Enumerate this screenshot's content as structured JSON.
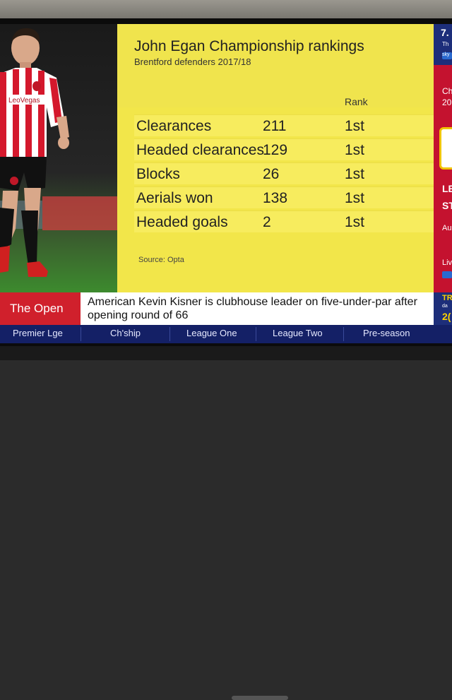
{
  "graphic": {
    "title": "John Egan Championship rankings",
    "subtitle": "Brentford defenders 2017/18",
    "rank_header": "Rank",
    "rows": [
      {
        "label": "Clearances",
        "value": "211",
        "rank": "1st"
      },
      {
        "label": "Headed clearances",
        "value": "129",
        "rank": "1st"
      },
      {
        "label": "Blocks",
        "value": "26",
        "rank": "1st"
      },
      {
        "label": "Aerials won",
        "value": "138",
        "rank": "1st"
      },
      {
        "label": "Headed goals",
        "value": "2",
        "rank": "1st"
      }
    ],
    "source": "Source: Opta"
  },
  "player": {
    "sponsor": "LeoVegas"
  },
  "sidebar": {
    "time_partial": "7.",
    "sub_partial": "Th",
    "sky_partial": "sky",
    "ch_partial": "Ch",
    "year_partial": "20",
    "le_partial": "LE",
    "st_partial": "ST",
    "au_partial": "Au",
    "liv_partial": "Liv"
  },
  "ticker": {
    "tag": "The Open",
    "text": "American Kevin Kisner is clubhouse leader on five-under-par after opening round of 66",
    "right_title": "TR",
    "right_sub": "da",
    "right_num": "2("
  },
  "nav": {
    "items": [
      "Premier Lge",
      "Ch'ship",
      "League One",
      "League Two",
      "Pre-season"
    ]
  },
  "colors": {
    "panel_yellow": "#f2e64a",
    "ticker_red": "#d0202c",
    "nav_blue": "#142066",
    "brentford_red": "#c4122f"
  }
}
